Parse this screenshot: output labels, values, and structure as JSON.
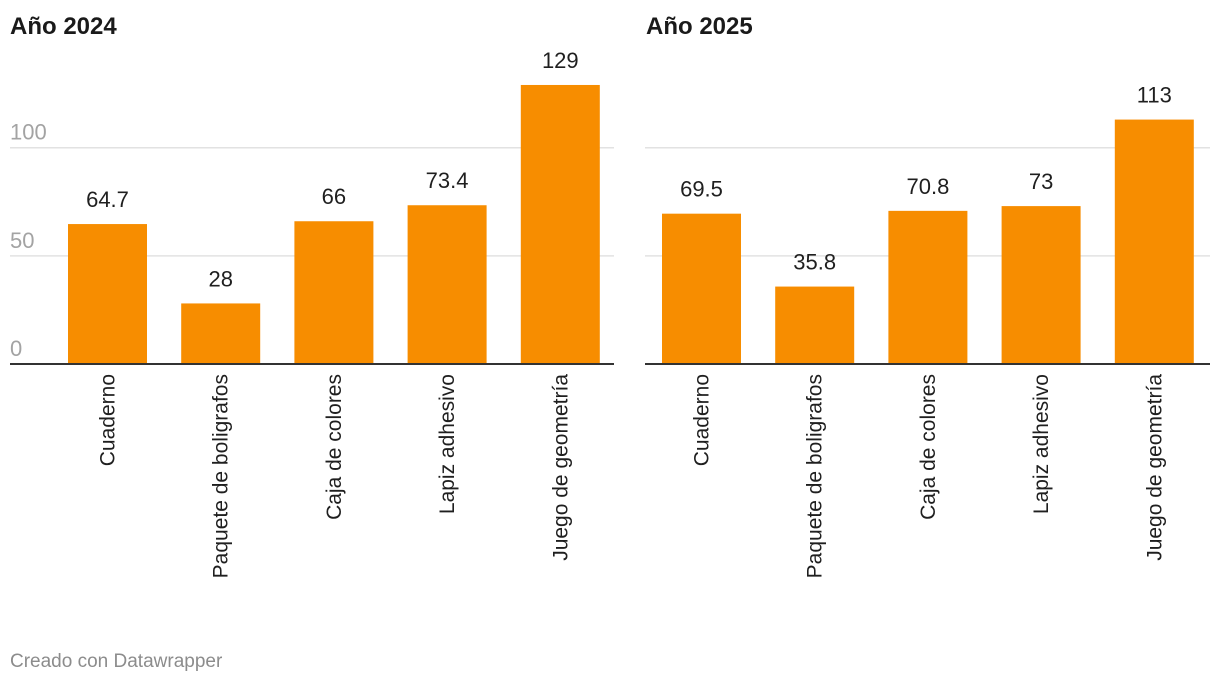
{
  "colors": {
    "bar": "#f78d00",
    "grid": "#e2e2e2",
    "axis": "#333333",
    "tick_text": "#a3a3a3",
    "label_text": "#1f1f1f"
  },
  "footer": "Creado con Datawrapper",
  "chart_data": [
    {
      "type": "bar",
      "title": "Año 2024",
      "categories": [
        "Cuaderno",
        "Paquete de boligrafos",
        "Caja de colores",
        "Lapiz adhesivo",
        "Juego de geometría"
      ],
      "values": [
        64.7,
        28,
        66,
        73.4,
        129
      ],
      "value_labels": [
        "64.7",
        "28",
        "66",
        "73.4",
        "129"
      ],
      "yticks": [
        0,
        50,
        100
      ],
      "ytick_labels": [
        "0",
        "50",
        "100"
      ],
      "ylim": [
        0,
        129
      ],
      "grid": true,
      "show_ytick_labels": true
    },
    {
      "type": "bar",
      "title": "Año 2025",
      "categories": [
        "Cuaderno",
        "Paquete de boligrafos",
        "Caja de colores",
        "Lapiz adhesivo",
        "Juego de geometría"
      ],
      "values": [
        69.5,
        35.8,
        70.8,
        73,
        113
      ],
      "value_labels": [
        "69.5",
        "35.8",
        "70.8",
        "73",
        "113"
      ],
      "yticks": [
        0,
        50,
        100
      ],
      "ytick_labels": [
        "",
        "",
        ""
      ],
      "ylim": [
        0,
        129
      ],
      "grid": true,
      "show_ytick_labels": false
    }
  ]
}
